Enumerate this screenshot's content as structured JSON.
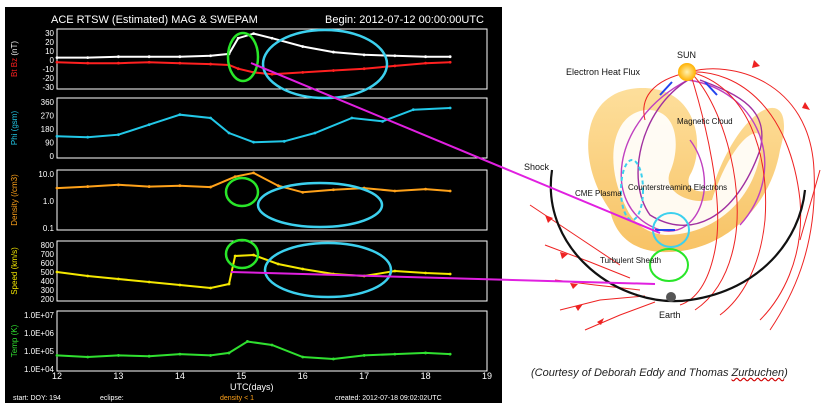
{
  "plot": {
    "title": "ACE RTSW (Estimated) MAG & SWEPAM",
    "begin": "Begin: 2012-07-12 00:00:00UTC",
    "footer_start": "start: DOY: 194",
    "footer_eclipse": "eclipse:",
    "footer_density_note": "density < 1",
    "footer_created": "created: 2012-07-18 09:02:02UTC",
    "x_label": "UTC(days)",
    "colors": {
      "bt": "#ffffff",
      "bz": "#ff2020",
      "phi": "#22c8e8",
      "density": "#ffa21a",
      "speed": "#f5e800",
      "temp": "#30e030",
      "circle_green": "#29e629",
      "circle_cyan": "#3cd0ee",
      "line_magenta": "#e020e0"
    }
  },
  "chart_data": [
    {
      "type": "line",
      "panel": "magnetic field",
      "ylabel_parts": [
        "Bt",
        "Bz",
        "(nT)"
      ],
      "y_ticks": [
        "30",
        "20",
        "10",
        "0",
        "-10",
        "-20",
        "-30"
      ],
      "ylim": [
        -30,
        35
      ],
      "x": [
        12,
        12.5,
        13,
        13.5,
        14,
        14.5,
        14.8,
        14.95,
        15.2,
        15.5,
        16,
        16.5,
        17,
        17.5,
        18,
        18.4
      ],
      "series": [
        {
          "name": "Bt",
          "values": [
            4,
            4,
            5,
            5,
            5,
            6,
            8,
            25,
            30,
            25,
            16,
            10,
            7,
            6,
            5,
            5
          ]
        },
        {
          "name": "Bz",
          "values": [
            -1,
            -2,
            -2,
            -1,
            -2,
            -3,
            -4,
            -8,
            -12,
            -14,
            -12,
            -10,
            -8,
            -5,
            -2,
            -1
          ]
        }
      ]
    },
    {
      "type": "line",
      "panel": "phi",
      "ylabel": "Phi (gsm)",
      "y_ticks": [
        "360",
        "270",
        "180",
        "90",
        "0"
      ],
      "ylim": [
        0,
        360
      ],
      "x": [
        12,
        12.5,
        13,
        13.5,
        14,
        14.5,
        14.8,
        15.2,
        15.7,
        16.2,
        16.8,
        17.3,
        17.8,
        18.4
      ],
      "series": [
        {
          "name": "Phi",
          "values": [
            130,
            125,
            140,
            200,
            260,
            240,
            150,
            95,
            100,
            150,
            240,
            220,
            290,
            300
          ]
        }
      ]
    },
    {
      "type": "line",
      "panel": "density",
      "ylabel": "Density (/cm3)",
      "y_ticks": [
        "10.0",
        "1.0",
        "0.1"
      ],
      "ylim": [
        0.1,
        10
      ],
      "log": true,
      "x": [
        12,
        12.5,
        13,
        13.5,
        14,
        14.5,
        14.9,
        15.2,
        15.6,
        16,
        16.5,
        17,
        17.5,
        18,
        18.4
      ],
      "series": [
        {
          "name": "Density",
          "values": [
            2.5,
            2.8,
            3.2,
            2.8,
            3.0,
            2.7,
            6,
            8,
            3,
            1.8,
            2.2,
            2.5,
            2.0,
            2.3,
            2.0
          ]
        }
      ]
    },
    {
      "type": "line",
      "panel": "speed",
      "ylabel": "Speed (km/s)",
      "y_ticks": [
        "800",
        "700",
        "600",
        "500",
        "400",
        "300",
        "200"
      ],
      "ylim": [
        200,
        800
      ],
      "x": [
        12,
        12.5,
        13,
        13.5,
        14,
        14.5,
        14.8,
        14.9,
        15.2,
        15.6,
        16,
        16.5,
        17,
        17.5,
        18,
        18.4
      ],
      "series": [
        {
          "name": "Speed",
          "values": [
            490,
            450,
            420,
            390,
            360,
            330,
            370,
            650,
            660,
            570,
            520,
            470,
            450,
            500,
            480,
            470
          ]
        }
      ]
    },
    {
      "type": "line",
      "panel": "temperature",
      "ylabel": "Temp (K)",
      "y_ticks": [
        "1.0E+07",
        "1.0E+06",
        "1.0E+05",
        "1.0E+04"
      ],
      "ylim": [
        10000,
        10000000
      ],
      "log": true,
      "x": [
        12,
        12.5,
        13,
        13.5,
        14,
        14.5,
        14.8,
        15.1,
        15.5,
        16,
        16.5,
        17,
        17.5,
        18,
        18.4
      ],
      "series": [
        {
          "name": "Temp",
          "values": [
            60000,
            50000,
            60000,
            55000,
            70000,
            60000,
            80000,
            300000,
            200000,
            50000,
            40000,
            60000,
            70000,
            80000,
            70000
          ]
        }
      ]
    }
  ],
  "x_ticks": [
    "12",
    "13",
    "14",
    "15",
    "16",
    "17",
    "18",
    "19"
  ],
  "diagram": {
    "sun": "SUN",
    "electron_heat_flux": "Electron Heat Flux",
    "magnetic_cloud": "Magnetic Cloud",
    "shock": "Shock",
    "cme_plasma": "CME Plasma",
    "counterstreaming": "Counterstreaming Electrons",
    "turbulent_sheath": "Turbulent Sheath",
    "earth": "Earth"
  },
  "caption": {
    "pre": "(Courtesy of Deborah Eddy and Thomas ",
    "name": "Zurbuchen",
    "post": ")"
  }
}
